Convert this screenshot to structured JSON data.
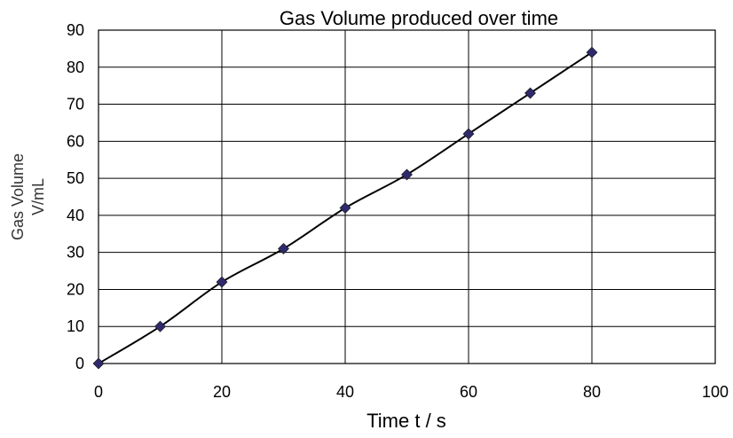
{
  "chart_data": {
    "type": "line",
    "title": "Gas Volume produced over time",
    "xlabel": "Time t / s",
    "ylabel_lines": [
      "Gas Volume",
      "V/mL"
    ],
    "x": [
      0,
      10,
      20,
      30,
      40,
      50,
      60,
      70,
      80
    ],
    "series": [
      {
        "values": [
          0,
          10,
          22,
          31,
          42,
          51,
          62,
          73,
          84
        ]
      }
    ],
    "xlim": [
      0,
      100
    ],
    "ylim": [
      0,
      90
    ],
    "x_ticks": [
      0,
      20,
      40,
      60,
      80,
      100
    ],
    "y_ticks": [
      0,
      10,
      20,
      30,
      40,
      50,
      60,
      70,
      80,
      90
    ],
    "grid": true,
    "marker": "diamond",
    "marker_color": "#2E2A6B",
    "line_color": "#000000",
    "smooth": true
  }
}
